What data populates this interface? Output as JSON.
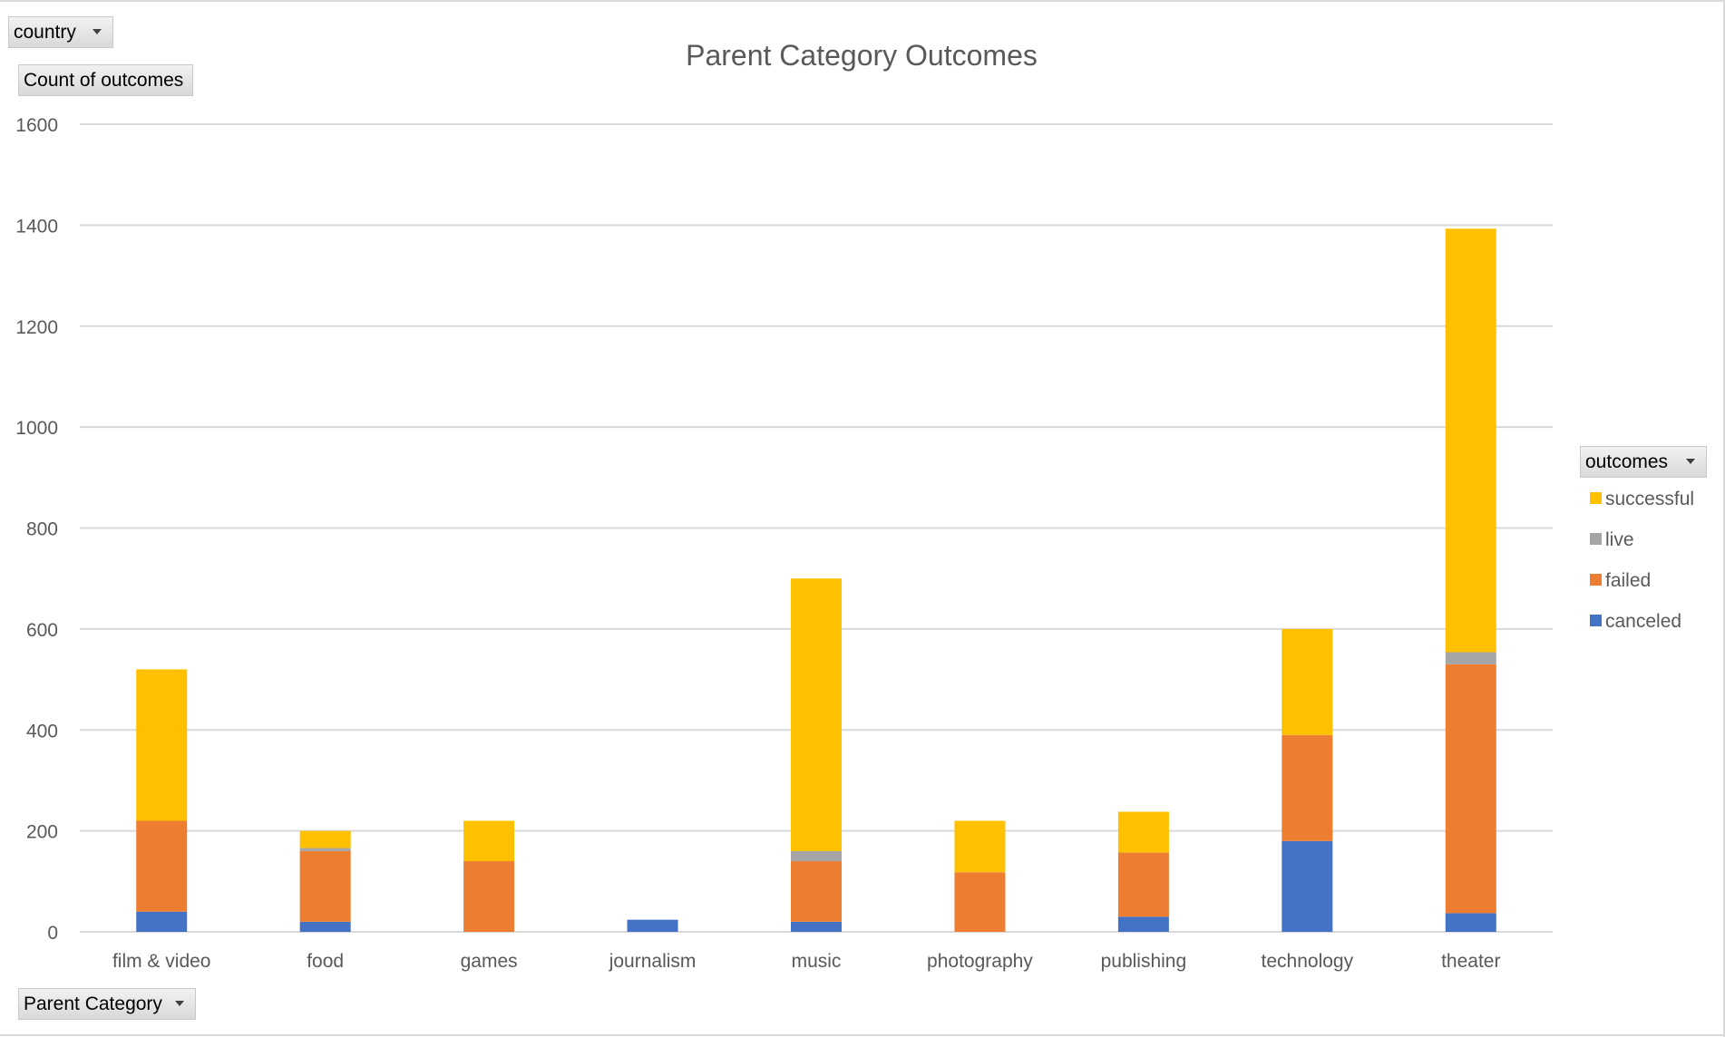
{
  "pivot_fields": {
    "filter_label": "country",
    "values_label": "Count of outcomes",
    "axis_label": "Parent Category",
    "legend_field_label": "outcomes"
  },
  "colors": {
    "successful": "#ffc000",
    "live": "#a5a5a5",
    "failed": "#ed7d31",
    "canceled": "#4472c4",
    "gridline": "#d9d9d9",
    "text": "#595959"
  },
  "chart_data": {
    "type": "bar",
    "stacked": true,
    "title": "Parent Category Outcomes",
    "xlabel": "",
    "ylabel": "",
    "ylim": [
      0,
      1600
    ],
    "yticks": [
      0,
      200,
      400,
      600,
      800,
      1000,
      1200,
      1400,
      1600
    ],
    "grid": true,
    "legend_position": "right",
    "categories": [
      "film & video",
      "food",
      "games",
      "journalism",
      "music",
      "photography",
      "publishing",
      "technology",
      "theater"
    ],
    "series": [
      {
        "name": "canceled",
        "color": "#4472c4",
        "values": [
          40,
          20,
          0,
          24,
          20,
          0,
          30,
          180,
          37
        ]
      },
      {
        "name": "failed",
        "color": "#ed7d31",
        "values": [
          180,
          140,
          140,
          0,
          120,
          118,
          127,
          210,
          493
        ]
      },
      {
        "name": "live",
        "color": "#a5a5a5",
        "values": [
          0,
          6,
          0,
          0,
          20,
          0,
          0,
          0,
          24
        ]
      },
      {
        "name": "successful",
        "color": "#ffc000",
        "values": [
          300,
          34,
          80,
          0,
          540,
          102,
          81,
          210,
          839
        ]
      }
    ],
    "legend_order": [
      "successful",
      "live",
      "failed",
      "canceled"
    ]
  }
}
